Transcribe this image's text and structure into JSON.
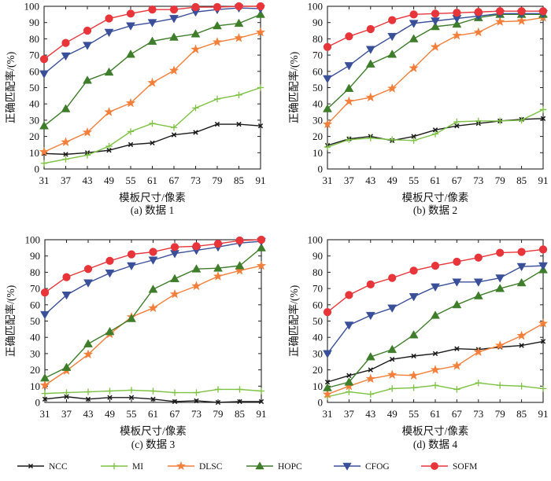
{
  "legend": [
    {
      "name": "NCC",
      "color": "#1a1a1a",
      "marker": "x"
    },
    {
      "name": "MI",
      "color": "#7dc242",
      "marker": "plus"
    },
    {
      "name": "DLSC",
      "color": "#f47f3a",
      "marker": "star"
    },
    {
      "name": "HOPC",
      "color": "#3e7d2a",
      "marker": "triangle-up"
    },
    {
      "name": "CFOG",
      "color": "#3a4f9a",
      "marker": "triangle-down"
    },
    {
      "name": "SOFM",
      "color": "#e8353a",
      "marker": "circle"
    }
  ],
  "chart_data": [
    {
      "type": "line",
      "caption": "(a) 数据 1",
      "xlabel": "模板尺寸/像素",
      "ylabel": "正确匹配率/(%)",
      "x": [
        31,
        37,
        43,
        49,
        55,
        61,
        67,
        73,
        79,
        85,
        91
      ],
      "ylim": [
        0,
        100
      ],
      "yticks": [
        0,
        10,
        20,
        30,
        40,
        50,
        60,
        70,
        80,
        90,
        100
      ],
      "series": [
        {
          "name": "NCC",
          "values": [
            9.5,
            9,
            10,
            11.5,
            15,
            16,
            21,
            22.5,
            27.5,
            27.5,
            26.5
          ]
        },
        {
          "name": "MI",
          "values": [
            3.5,
            6,
            8.5,
            14,
            23,
            28,
            25.5,
            37.5,
            43,
            45.5,
            50
          ]
        },
        {
          "name": "DLSC",
          "values": [
            10.5,
            16.5,
            22.5,
            35,
            40.5,
            53,
            60.5,
            73.5,
            78,
            80.5,
            84
          ]
        },
        {
          "name": "HOPC",
          "values": [
            26.5,
            37,
            54.5,
            59.5,
            70.5,
            78.5,
            81,
            83,
            88,
            89.5,
            95
          ]
        },
        {
          "name": "CFOG",
          "values": [
            58.5,
            69.5,
            76,
            84,
            88,
            90,
            92.5,
            96.5,
            98,
            99,
            98.5
          ]
        },
        {
          "name": "SOFM",
          "values": [
            67.5,
            77.5,
            85,
            92.5,
            95.5,
            98,
            98,
            99.5,
            99.5,
            100,
            100
          ]
        }
      ]
    },
    {
      "type": "line",
      "caption": "(b) 数据 2",
      "xlabel": "模板尺寸/像素",
      "ylabel": "正确匹配率/(%)",
      "x": [
        31,
        37,
        43,
        49,
        55,
        61,
        67,
        73,
        79,
        85,
        91
      ],
      "ylim": [
        0,
        100
      ],
      "yticks": [
        0,
        10,
        20,
        30,
        40,
        50,
        60,
        70,
        80,
        90,
        100
      ],
      "series": [
        {
          "name": "NCC",
          "values": [
            14.5,
            18.5,
            20,
            17.5,
            20,
            24,
            26.5,
            28,
            29.5,
            30.5,
            31
          ]
        },
        {
          "name": "MI",
          "values": [
            13.5,
            18,
            19,
            18,
            17.5,
            21.5,
            29,
            29.5,
            29.5,
            30,
            36.5
          ]
        },
        {
          "name": "DLSC",
          "values": [
            27.5,
            41.5,
            44,
            49.5,
            62,
            75,
            82,
            84,
            90.5,
            91,
            93
          ]
        },
        {
          "name": "HOPC",
          "values": [
            37,
            49.5,
            64.5,
            70.5,
            80,
            87.5,
            89,
            93,
            95,
            95,
            95
          ]
        },
        {
          "name": "CFOG",
          "values": [
            55.5,
            63.5,
            73.5,
            81.5,
            89.5,
            91,
            92.5,
            94,
            95.5,
            95.5,
            95.5
          ]
        },
        {
          "name": "SOFM",
          "values": [
            75,
            81.5,
            86,
            91.5,
            95,
            95.5,
            96,
            96.5,
            97,
            97,
            97
          ]
        }
      ]
    },
    {
      "type": "line",
      "caption": "(c) 数据 3",
      "xlabel": "模板尺寸/像素",
      "ylabel": "正确匹配率/(%)",
      "x": [
        31,
        37,
        43,
        49,
        55,
        61,
        67,
        73,
        79,
        85,
        91
      ],
      "ylim": [
        0,
        100
      ],
      "yticks": [
        0,
        10,
        20,
        30,
        40,
        50,
        60,
        70,
        80,
        90,
        100
      ],
      "series": [
        {
          "name": "NCC",
          "values": [
            2,
            3.5,
            2,
            3,
            3,
            2,
            0.5,
            1,
            0,
            0.5,
            0.5
          ]
        },
        {
          "name": "MI",
          "values": [
            5.5,
            6,
            6.5,
            7,
            7.5,
            7,
            6,
            6,
            8,
            8,
            7
          ]
        },
        {
          "name": "DLSC",
          "values": [
            10.5,
            19.5,
            29.5,
            42,
            52.5,
            58,
            66.5,
            71.5,
            77.5,
            81,
            84
          ]
        },
        {
          "name": "HOPC",
          "values": [
            15,
            21.5,
            36,
            43.5,
            51.5,
            69.5,
            76,
            82,
            82.5,
            84,
            95
          ]
        },
        {
          "name": "CFOG",
          "values": [
            54,
            66,
            73.5,
            79.5,
            84,
            87.5,
            91.5,
            93.5,
            95.5,
            98,
            99
          ]
        },
        {
          "name": "SOFM",
          "values": [
            67.5,
            77,
            82,
            87,
            91,
            92.5,
            95.5,
            96,
            97.5,
            99.5,
            100
          ]
        }
      ]
    },
    {
      "type": "line",
      "caption": "(d) 数据 4",
      "xlabel": "模板尺寸/像素",
      "ylabel": "正确匹配率/(%)",
      "x": [
        31,
        37,
        43,
        49,
        55,
        61,
        67,
        73,
        79,
        85,
        91
      ],
      "ylim": [
        0,
        100
      ],
      "yticks": [
        0,
        10,
        20,
        30,
        40,
        50,
        60,
        70,
        80,
        90,
        100
      ],
      "series": [
        {
          "name": "NCC",
          "values": [
            12.5,
            16.5,
            20,
            26.5,
            28.5,
            30,
            33,
            32.5,
            34,
            35,
            37.5
          ]
        },
        {
          "name": "MI",
          "values": [
            3.5,
            6.5,
            5,
            8.5,
            9,
            10.5,
            8,
            12,
            10.5,
            10,
            8.5
          ]
        },
        {
          "name": "DLSC",
          "values": [
            5,
            10,
            14.5,
            17,
            16.5,
            20,
            22.5,
            31,
            35,
            41,
            48.5
          ]
        },
        {
          "name": "HOPC",
          "values": [
            9,
            12.5,
            28,
            32.5,
            41.5,
            53.5,
            60,
            65.5,
            70,
            73.5,
            81.5
          ]
        },
        {
          "name": "CFOG",
          "values": [
            30,
            47.5,
            53.5,
            58,
            65,
            71,
            74,
            74,
            76.5,
            83.5,
            84
          ]
        },
        {
          "name": "SOFM",
          "values": [
            55.5,
            66,
            72.5,
            76.5,
            81,
            84,
            86.5,
            89,
            92,
            92.5,
            94
          ]
        }
      ]
    }
  ]
}
